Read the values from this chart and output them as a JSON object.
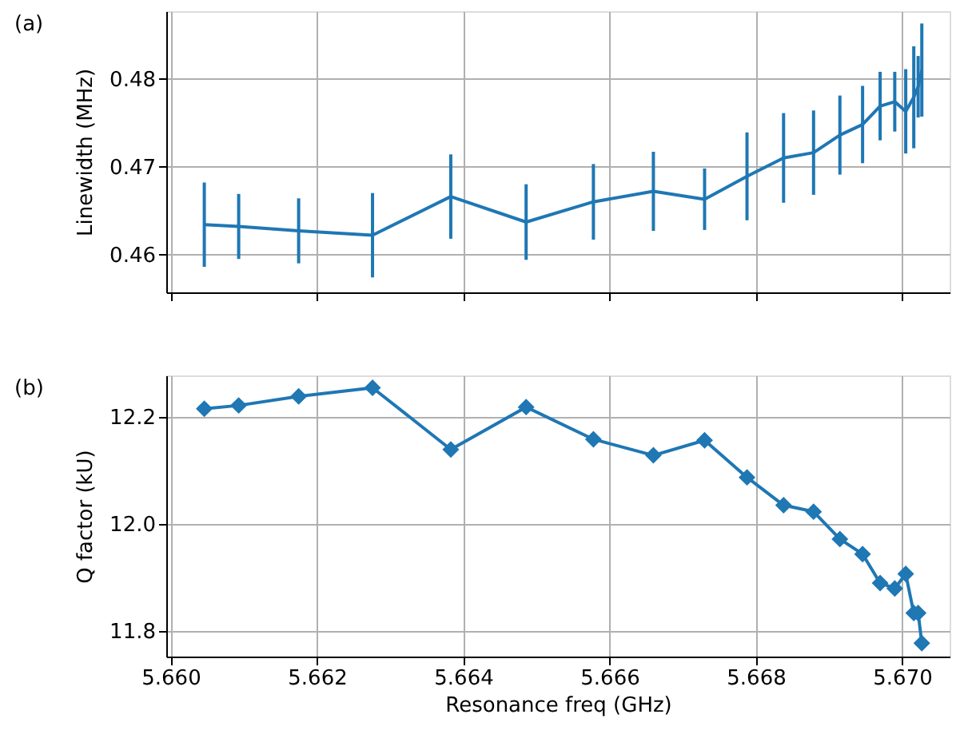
{
  "chart_data": [
    {
      "type": "line",
      "ylabel": "Linewidth (MHz)",
      "annotations": [
        "(a)"
      ],
      "x": [
        5.66046,
        5.66093,
        5.66175,
        5.66276,
        5.66383,
        5.66486,
        5.66578,
        5.6666,
        5.6673,
        5.66788,
        5.66838,
        5.66879,
        5.66915,
        5.66946,
        5.6697,
        5.6699,
        5.67005,
        5.67016,
        5.67022,
        5.67027
      ],
      "series": [
        {
          "color": "#1f77b4",
          "values": [
            0.4634,
            0.4632,
            0.4627,
            0.4622,
            0.4666,
            0.4637,
            0.466,
            0.4672,
            0.4663,
            0.4689,
            0.471,
            0.4716,
            0.4736,
            0.4748,
            0.4769,
            0.4774,
            0.4763,
            0.4779,
            0.4791,
            0.481
          ],
          "errors": [
            0.0048,
            0.0037,
            0.0037,
            0.0048,
            0.0048,
            0.0043,
            0.0043,
            0.0045,
            0.0035,
            0.005,
            0.0051,
            0.0048,
            0.0045,
            0.0044,
            0.0039,
            0.0034,
            0.0048,
            0.0058,
            0.0035,
            0.0053
          ]
        }
      ],
      "xlim": [
        5.65994,
        5.67065
      ],
      "xticks": [
        {
          "value": 5.66,
          "label": null
        },
        {
          "value": 5.662,
          "label": null
        },
        {
          "value": 5.664,
          "label": null
        },
        {
          "value": 5.666,
          "label": null
        },
        {
          "value": 5.668,
          "label": null
        },
        {
          "value": 5.67,
          "label": null
        }
      ],
      "ylim": [
        0.4557,
        0.4877
      ],
      "yticks": [
        {
          "value": 0.46,
          "label": "0.46"
        },
        {
          "value": 0.47,
          "label": "0.47"
        },
        {
          "value": 0.48,
          "label": "0.48"
        }
      ],
      "grid": true,
      "marker": "none",
      "line_style": "solid",
      "tick_labels": "y"
    },
    {
      "type": "line",
      "xlabel": "Resonance freq (GHz)",
      "ylabel": "Q factor (kU)",
      "annotations": [
        "(b)"
      ],
      "x": [
        5.66046,
        5.66093,
        5.66175,
        5.66276,
        5.66383,
        5.66486,
        5.66578,
        5.6666,
        5.6673,
        5.66788,
        5.66838,
        5.66879,
        5.66915,
        5.66946,
        5.6697,
        5.6699,
        5.67005,
        5.67016,
        5.67022,
        5.67027
      ],
      "series": [
        {
          "color": "#1f77b4",
          "values": [
            12.215,
            12.221,
            12.238,
            12.254,
            12.139,
            12.218,
            12.158,
            12.128,
            12.156,
            12.087,
            12.035,
            12.023,
            11.972,
            11.944,
            11.89,
            11.88,
            11.907,
            11.834,
            11.834,
            11.778
          ]
        }
      ],
      "xlim": [
        5.65994,
        5.67065
      ],
      "xticks": [
        {
          "value": 5.66,
          "label": "5.660"
        },
        {
          "value": 5.662,
          "label": "5.662"
        },
        {
          "value": 5.664,
          "label": "5.664"
        },
        {
          "value": 5.666,
          "label": "5.666"
        },
        {
          "value": 5.668,
          "label": "5.668"
        },
        {
          "value": 5.67,
          "label": "5.670"
        }
      ],
      "ylim": [
        11.753,
        12.277
      ],
      "yticks": [
        {
          "value": 11.8,
          "label": "11.8"
        },
        {
          "value": 12.0,
          "label": "12.0"
        },
        {
          "value": 12.2,
          "label": "12.2"
        }
      ],
      "grid": true,
      "marker": "diamond",
      "line_style": "solid"
    }
  ]
}
